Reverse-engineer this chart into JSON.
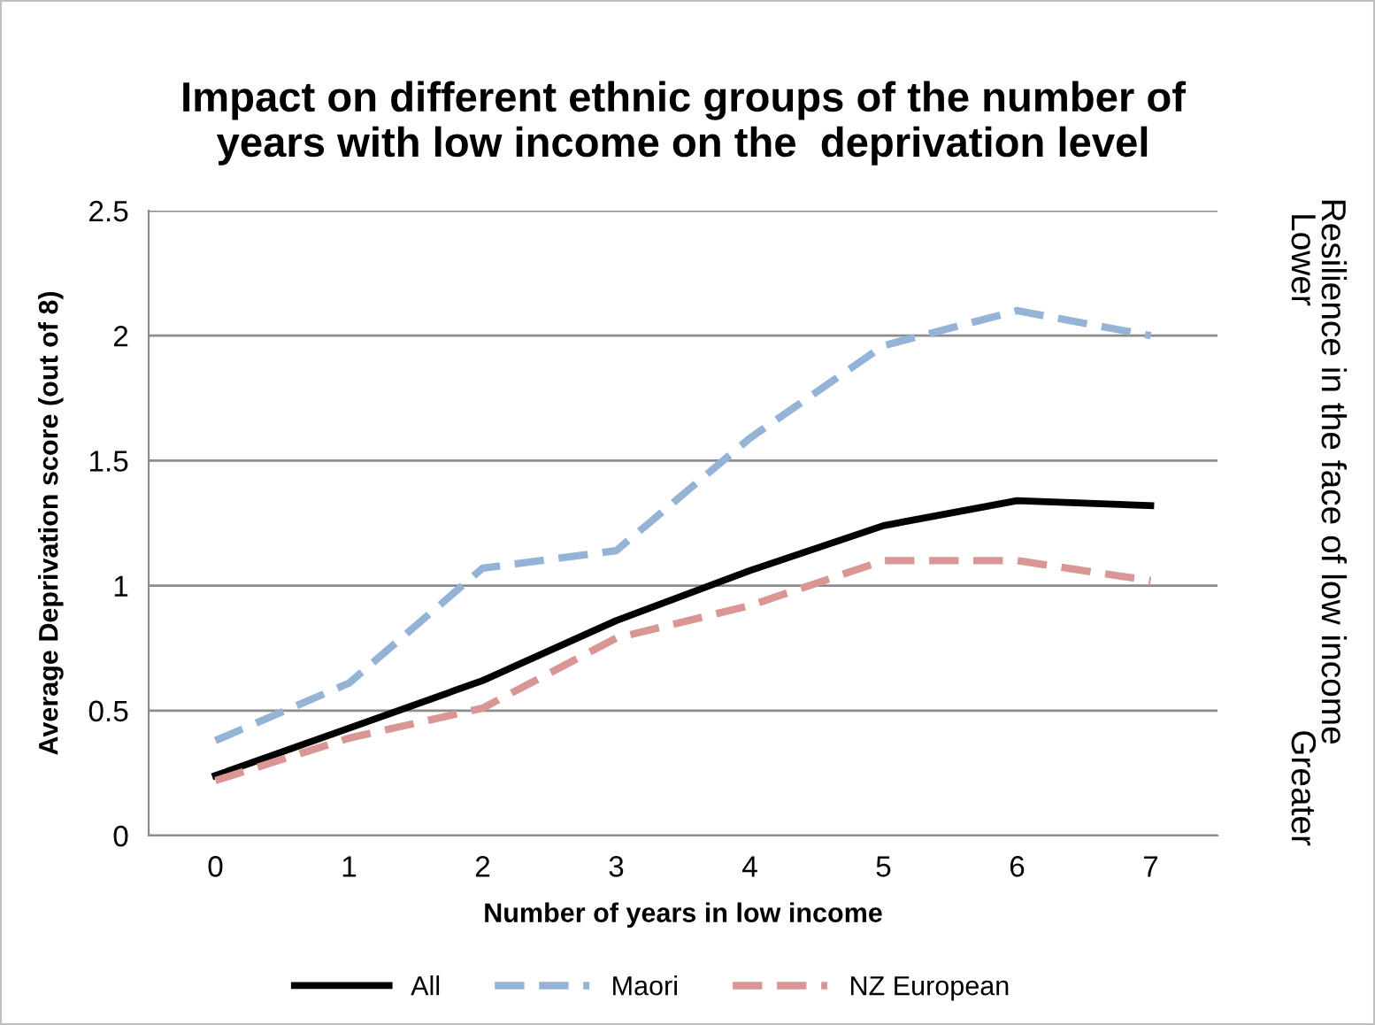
{
  "chart_data": {
    "type": "line",
    "title": "Impact on different ethnic groups of the number of\nyears with low income on the  deprivation level",
    "xlabel": "Number of years in low income",
    "ylabel": "Average Deprivation score (out of 8)",
    "y2label": "Resilience in the face of low income",
    "annotations": [
      "Lower",
      "Greater"
    ],
    "categories": [
      "0",
      "1",
      "2",
      "3",
      "4",
      "5",
      "6",
      "7"
    ],
    "series": [
      {
        "name": "All",
        "color": "#000000",
        "line_style": "solid",
        "values": [
          0.24,
          0.43,
          0.62,
          0.86,
          1.06,
          1.24,
          1.34,
          1.32
        ]
      },
      {
        "name": "Maori",
        "color": "#95b3d7",
        "line_style": "dashed",
        "values": [
          0.38,
          0.61,
          1.07,
          1.14,
          1.59,
          1.96,
          2.1,
          2.0
        ]
      },
      {
        "name": "NZ European",
        "color": "#d99694",
        "line_style": "dashed",
        "values": [
          0.22,
          0.39,
          0.51,
          0.79,
          0.92,
          1.1,
          1.1,
          1.02
        ]
      }
    ],
    "ylim": [
      0,
      2.5
    ],
    "yticks": [
      0,
      0.5,
      1,
      1.5,
      2,
      2.5
    ],
    "grid": "y",
    "legend": "bottom",
    "marker": "none"
  }
}
